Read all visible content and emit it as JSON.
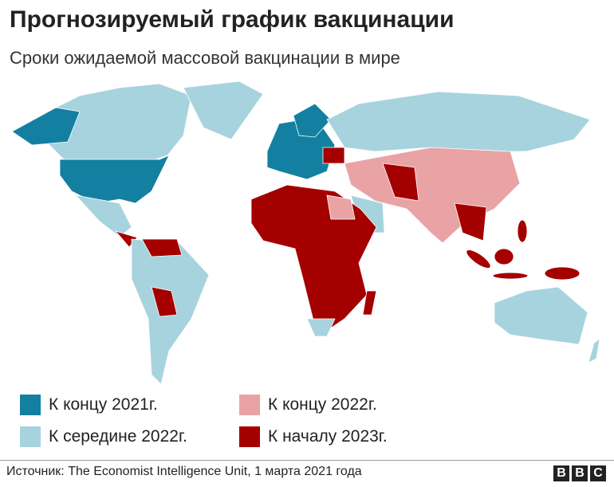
{
  "header": {
    "title": "Прогнозируемый график вакцинации",
    "subtitle": "Сроки ожидаемой массовой вакцинации в мире"
  },
  "legend": {
    "items": [
      {
        "label": "К концу 2021г.",
        "color": "#1380a1"
      },
      {
        "label": "К концу 2022г.",
        "color": "#e9a3a5"
      },
      {
        "label": "К середине 2022г.",
        "color": "#a7d3de"
      },
      {
        "label": "К началу 2023г.",
        "color": "#a50000"
      }
    ]
  },
  "footer": {
    "source": "Источник: The Economist Intelligence Unit, 1 марта 2021 года",
    "logo": [
      "B",
      "B",
      "C"
    ]
  }
}
